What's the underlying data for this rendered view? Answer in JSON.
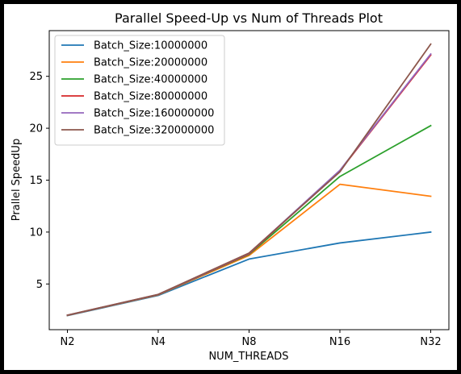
{
  "chart_data": {
    "type": "line",
    "title": "Parallel Speed-Up vs Num of Threads Plot",
    "xlabel": "NUM_THREADS",
    "ylabel": "Prallel SpeedUp",
    "categories": [
      "N2",
      "N4",
      "N8",
      "N16",
      "N32"
    ],
    "ylim": [
      0.6,
      29.4
    ],
    "yticks": [
      5,
      10,
      15,
      20,
      25
    ],
    "grid": false,
    "legend_position": "top-left",
    "series": [
      {
        "name": "Batch_Size:10000000",
        "color": "#1f77b4",
        "values": [
          1.95,
          3.9,
          7.4,
          8.95,
          10.0
        ]
      },
      {
        "name": "Batch_Size:20000000",
        "color": "#ff7f0e",
        "values": [
          1.97,
          3.95,
          7.75,
          14.6,
          13.45
        ]
      },
      {
        "name": "Batch_Size:40000000",
        "color": "#2ca02c",
        "values": [
          1.98,
          3.97,
          7.85,
          15.35,
          20.25
        ]
      },
      {
        "name": "Batch_Size:80000000",
        "color": "#d62728",
        "values": [
          1.99,
          3.98,
          7.9,
          15.9,
          27.05
        ]
      },
      {
        "name": "Batch_Size:160000000",
        "color": "#9467bd",
        "values": [
          1.99,
          3.99,
          7.95,
          15.95,
          27.15
        ]
      },
      {
        "name": "Batch_Size:320000000",
        "color": "#8c564b",
        "values": [
          2.0,
          4.0,
          7.98,
          15.8,
          28.1
        ]
      }
    ]
  }
}
